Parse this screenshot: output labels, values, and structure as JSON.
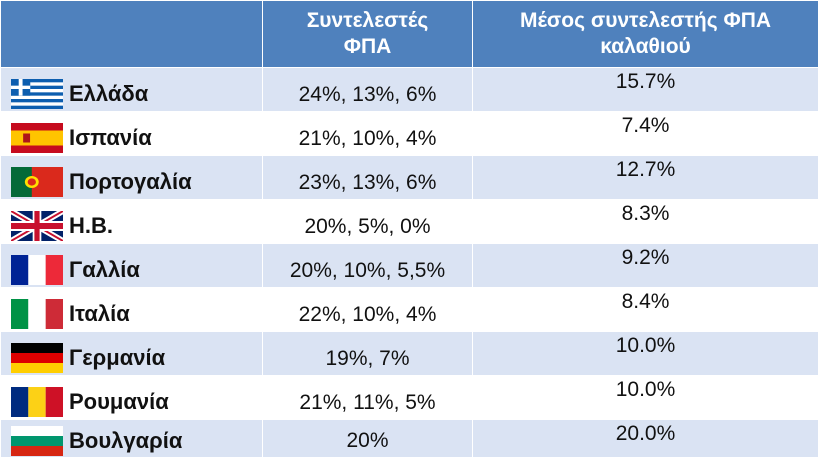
{
  "header": {
    "col_rates_line1": "Συντελεστές",
    "col_rates_line2": "ΦΠΑ",
    "col_avg_line1": "Μέσος συντελεστής ΦΠΑ",
    "col_avg_line2": "καλαθιού"
  },
  "rows": [
    {
      "country": "Ελλάδα",
      "flag": "greece-flag",
      "rates": "24%, 13%, 6%",
      "avg": "15.7%"
    },
    {
      "country": "Ισπανία",
      "flag": "spain-flag",
      "rates": "21%, 10%, 4%",
      "avg": "7.4%"
    },
    {
      "country": "Πορτογαλία",
      "flag": "portugal-flag",
      "rates": "23%, 13%, 6%",
      "avg": "12.7%"
    },
    {
      "country": "Η.Β.",
      "flag": "uk-flag",
      "rates": "20%, 5%, 0%",
      "avg": "8.3%"
    },
    {
      "country": "Γαλλία",
      "flag": "france-flag",
      "rates": "20%, 10%, 5,5%",
      "avg": "9.2%"
    },
    {
      "country": "Ιταλία",
      "flag": "italy-flag",
      "rates": "22%, 10%, 4%",
      "avg": "8.4%"
    },
    {
      "country": "Γερμανία",
      "flag": "germany-flag",
      "rates": "19%, 7%",
      "avg": "10.0%"
    },
    {
      "country": "Ρουμανία",
      "flag": "romania-flag",
      "rates": "21%, 11%, 5%",
      "avg": "10.0%"
    },
    {
      "country": "Βουλγαρία",
      "flag": "bulgaria-flag",
      "rates": "20%",
      "avg": "20.0%"
    }
  ],
  "colors": {
    "header_bg": "#4f81bd",
    "row_alt_bg": "#dae3f3"
  }
}
